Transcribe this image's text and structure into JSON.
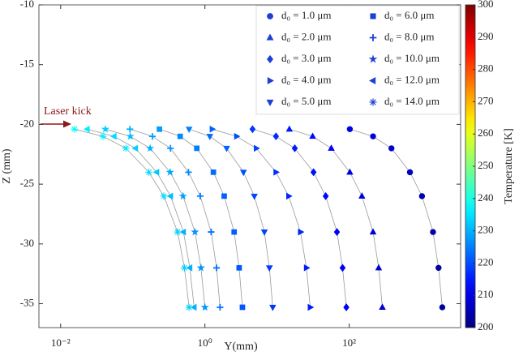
{
  "chart_data": {
    "type": "scatter",
    "x_label": "Y(mm)",
    "y_label": "Z (mm)",
    "colorbar_label": "Temperature [K]",
    "annotation": "Laser kick",
    "x_log": true,
    "colormap": "jet",
    "xlim": [
      0.005,
      3500
    ],
    "ylim": [
      -37,
      -10
    ],
    "clim": [
      200,
      300
    ],
    "xticks": [
      {
        "value": 0.01,
        "label": "10⁻²"
      },
      {
        "value": 1,
        "label": "10⁰"
      },
      {
        "value": 100,
        "label": "10²"
      }
    ],
    "yticks": [
      -35,
      -30,
      -25,
      -20,
      -15,
      -10
    ],
    "cticks": [
      200,
      210,
      220,
      230,
      240,
      250,
      260,
      270,
      280,
      290,
      300
    ],
    "line_color": "#9a9a9a",
    "series": [
      {
        "name": "d₀ = 1.0 μm",
        "marker": "circle",
        "color": "#1c3fd6",
        "x": [
          102,
          214,
          385,
          695,
          1020,
          1450,
          1730,
          1950
        ],
        "values": [
          -20.4,
          -21,
          -22,
          -24,
          -26,
          -29,
          -32,
          -35.3
        ],
        "temperature": [
          210,
          209,
          208,
          206,
          205,
          204,
          203,
          203
        ]
      },
      {
        "name": "d₀ = 2.0 μm",
        "marker": "triangle-up",
        "color": "#1c3fd6",
        "x": [
          14.8,
          31.1,
          56.4,
          102,
          150,
          214,
          256,
          288
        ],
        "values": [
          -20.4,
          -21,
          -22,
          -24,
          -26,
          -29,
          -32,
          -35.3
        ],
        "temperature": [
          215,
          213,
          212,
          210,
          209,
          209,
          208,
          208
        ]
      },
      {
        "name": "d₀ = 3.0 μm",
        "marker": "diamond",
        "color": "#1c3fd6",
        "x": [
          4.57,
          9.66,
          17.6,
          32.0,
          47.2,
          67.6,
          80.9,
          91.2
        ],
        "values": [
          -20.4,
          -21,
          -22,
          -24,
          -26,
          -29,
          -32,
          -35.3
        ],
        "temperature": [
          218,
          217,
          215,
          214,
          213,
          212,
          212,
          212
        ]
      },
      {
        "name": "d₀ = 4.0 μm",
        "marker": "triangle-right",
        "color": "#1c3fd6",
        "x": [
          1.26,
          2.75,
          5.15,
          9.64,
          14.5,
          21.1,
          25.5,
          28.8
        ],
        "values": [
          -20.4,
          -21,
          -22,
          -24,
          -26,
          -29,
          -32,
          -35.3
        ],
        "temperature": [
          222,
          220,
          219,
          217,
          216,
          216,
          215,
          215
        ]
      },
      {
        "name": "d₀ = 5.0 μm",
        "marker": "triangle-down",
        "color": "#1c3fd6",
        "x": [
          0.603,
          1.17,
          2.0,
          3.42,
          4.84,
          6.67,
          7.83,
          8.71
        ],
        "values": [
          -20.4,
          -21,
          -22,
          -24,
          -26,
          -29,
          -32,
          -35.3
        ],
        "temperature": [
          225,
          223,
          222,
          220,
          219,
          219,
          218,
          218
        ]
      },
      {
        "name": "d₀ = 6.0 μm",
        "marker": "square",
        "color": "#1c3fd6",
        "x": [
          0.234,
          0.454,
          0.771,
          1.31,
          1.85,
          2.54,
          2.98,
          3.31
        ],
        "values": [
          -20.4,
          -21,
          -22,
          -24,
          -26,
          -29,
          -32,
          -35.3
        ],
        "temperature": [
          228,
          226,
          225,
          223,
          222,
          222,
          221,
          221
        ]
      },
      {
        "name": "d₀ = 8.0 μm",
        "marker": "plus",
        "color": "#1c3fd6",
        "x": [
          0.0912,
          0.187,
          0.333,
          0.592,
          0.861,
          1.22,
          1.45,
          1.62
        ],
        "values": [
          -20.4,
          -21,
          -22,
          -24,
          -26,
          -29,
          -32,
          -35.3
        ],
        "temperature": [
          230,
          228,
          227,
          226,
          225,
          224,
          224,
          224
        ]
      },
      {
        "name": "d₀ = 10.0 μm",
        "marker": "star",
        "color": "#1c3fd6",
        "x": [
          0.0417,
          0.0923,
          0.174,
          0.329,
          0.497,
          0.728,
          0.881,
          1.0
        ],
        "values": [
          -20.4,
          -21,
          -22,
          -24,
          -26,
          -29,
          -32,
          -35.3
        ],
        "temperature": [
          233,
          231,
          230,
          229,
          228,
          227,
          227,
          227
        ]
      },
      {
        "name": "d₀ = 12.0 μm",
        "marker": "triangle-left",
        "color": "#1c3fd6",
        "x": [
          0.0234,
          0.055,
          0.109,
          0.215,
          0.334,
          0.504,
          0.618,
          0.708
        ],
        "values": [
          -20.4,
          -21,
          -22,
          -24,
          -26,
          -29,
          -32,
          -35.3
        ],
        "temperature": [
          236,
          234,
          233,
          232,
          231,
          230,
          230,
          230
        ]
      },
      {
        "name": "d₀ = 14.0 μm",
        "marker": "asterisk",
        "color": "#1c3fd6",
        "x": [
          0.0155,
          0.0386,
          0.0804,
          0.167,
          0.269,
          0.418,
          0.52,
          0.603
        ],
        "values": [
          -20.4,
          -21,
          -22,
          -24,
          -26,
          -29,
          -32,
          -35.3
        ],
        "temperature": [
          238,
          236,
          235,
          234,
          234,
          233,
          233,
          233
        ]
      }
    ]
  }
}
